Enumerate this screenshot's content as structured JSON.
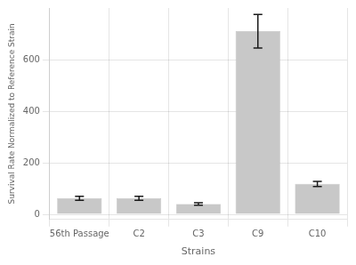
{
  "chart_data": {
    "type": "bar",
    "categories": [
      "56th Passage",
      "C2",
      "C3",
      "C9",
      "C10"
    ],
    "values": [
      62,
      62,
      40,
      710,
      118
    ],
    "errors": [
      8,
      8,
      5,
      65,
      10
    ],
    "color": "#c8c8c8",
    "xlabel": "Strains",
    "ylabel": "Survival Rate Normalized to Reference Strain",
    "ylim": [
      -20,
      800
    ],
    "yticks": [
      0,
      200,
      400,
      600
    ],
    "grid": true
  }
}
